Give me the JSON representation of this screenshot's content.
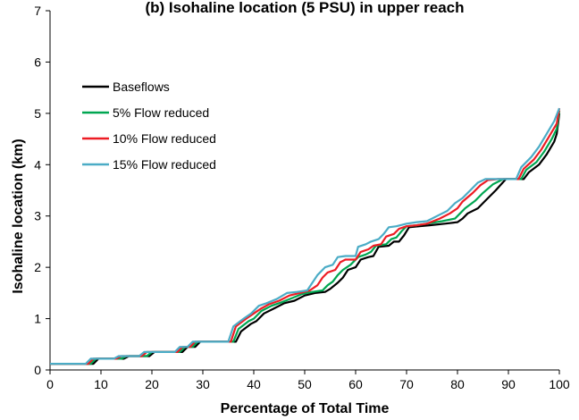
{
  "chart_data": {
    "type": "line",
    "title": "(b) Isohaline location (5 PSU) in upper reach",
    "xlabel": "Percentage of Total Time",
    "ylabel": "Isohaline location (km)",
    "xlim": [
      0,
      100
    ],
    "ylim": [
      0,
      7
    ],
    "x_ticks": [
      0,
      10,
      20,
      30,
      40,
      50,
      60,
      70,
      80,
      90,
      100
    ],
    "y_ticks": [
      0,
      1,
      2,
      3,
      4,
      5,
      6,
      7
    ],
    "grid": false,
    "legend_position": "upper-left",
    "series": [
      {
        "name": "Baseflows",
        "color": "#000000",
        "points": [
          [
            0,
            0.12
          ],
          [
            8.5,
            0.12
          ],
          [
            9.5,
            0.22
          ],
          [
            14.5,
            0.22
          ],
          [
            15.5,
            0.27
          ],
          [
            19.5,
            0.27
          ],
          [
            20.5,
            0.35
          ],
          [
            26,
            0.35
          ],
          [
            27,
            0.45
          ],
          [
            28.5,
            0.45
          ],
          [
            29.5,
            0.55
          ],
          [
            36.5,
            0.55
          ],
          [
            37.5,
            0.75
          ],
          [
            39.5,
            0.9
          ],
          [
            40.5,
            0.95
          ],
          [
            42,
            1.1
          ],
          [
            44,
            1.2
          ],
          [
            46,
            1.3
          ],
          [
            48,
            1.35
          ],
          [
            50,
            1.45
          ],
          [
            52,
            1.5
          ],
          [
            54,
            1.52
          ],
          [
            55,
            1.58
          ],
          [
            56.5,
            1.7
          ],
          [
            57.5,
            1.8
          ],
          [
            58.5,
            1.95
          ],
          [
            60,
            2.0
          ],
          [
            61,
            2.15
          ],
          [
            62.5,
            2.2
          ],
          [
            63.5,
            2.22
          ],
          [
            64.5,
            2.4
          ],
          [
            66.5,
            2.42
          ],
          [
            67.5,
            2.5
          ],
          [
            68.5,
            2.5
          ],
          [
            69.5,
            2.62
          ],
          [
            70.5,
            2.78
          ],
          [
            72.5,
            2.8
          ],
          [
            74.5,
            2.82
          ],
          [
            77.5,
            2.85
          ],
          [
            80,
            2.88
          ],
          [
            81,
            2.95
          ],
          [
            82,
            3.05
          ],
          [
            84,
            3.15
          ],
          [
            85.5,
            3.3
          ],
          [
            87.5,
            3.5
          ],
          [
            89.5,
            3.72
          ],
          [
            93,
            3.72
          ],
          [
            94,
            3.85
          ],
          [
            96,
            4.0
          ],
          [
            97.5,
            4.2
          ],
          [
            99,
            4.45
          ],
          [
            99.5,
            4.6
          ],
          [
            100,
            5.0
          ]
        ]
      },
      {
        "name": "5% Flow reduced",
        "color": "#00A651",
        "points": [
          [
            0,
            0.12
          ],
          [
            8,
            0.12
          ],
          [
            9,
            0.22
          ],
          [
            14,
            0.22
          ],
          [
            15,
            0.27
          ],
          [
            19,
            0.27
          ],
          [
            20,
            0.35
          ],
          [
            25.5,
            0.35
          ],
          [
            26.5,
            0.45
          ],
          [
            28,
            0.45
          ],
          [
            29,
            0.55
          ],
          [
            36,
            0.55
          ],
          [
            37,
            0.8
          ],
          [
            39,
            0.95
          ],
          [
            40,
            1.0
          ],
          [
            41.5,
            1.15
          ],
          [
            43.5,
            1.25
          ],
          [
            45.5,
            1.32
          ],
          [
            47.5,
            1.4
          ],
          [
            49.5,
            1.48
          ],
          [
            51.5,
            1.52
          ],
          [
            53.5,
            1.55
          ],
          [
            54.5,
            1.65
          ],
          [
            55.5,
            1.72
          ],
          [
            56.5,
            1.85
          ],
          [
            57.5,
            1.95
          ],
          [
            59,
            2.05
          ],
          [
            60.5,
            2.2
          ],
          [
            62,
            2.25
          ],
          [
            63,
            2.3
          ],
          [
            64,
            2.42
          ],
          [
            66,
            2.45
          ],
          [
            67,
            2.55
          ],
          [
            68,
            2.58
          ],
          [
            69,
            2.7
          ],
          [
            70,
            2.8
          ],
          [
            72,
            2.82
          ],
          [
            74,
            2.85
          ],
          [
            77,
            2.9
          ],
          [
            79.5,
            2.95
          ],
          [
            80.5,
            3.05
          ],
          [
            81.5,
            3.15
          ],
          [
            83.5,
            3.3
          ],
          [
            85,
            3.45
          ],
          [
            87,
            3.62
          ],
          [
            89,
            3.72
          ],
          [
            92.5,
            3.72
          ],
          [
            93.5,
            3.9
          ],
          [
            95.5,
            4.05
          ],
          [
            97,
            4.25
          ],
          [
            98.5,
            4.5
          ],
          [
            99.5,
            4.7
          ],
          [
            100,
            5.05
          ]
        ]
      },
      {
        "name": "10% Flow reduced",
        "color": "#ED1C24",
        "points": [
          [
            0,
            0.12
          ],
          [
            7.5,
            0.12
          ],
          [
            8.5,
            0.22
          ],
          [
            13,
            0.22
          ],
          [
            14,
            0.27
          ],
          [
            18,
            0.27
          ],
          [
            19,
            0.35
          ],
          [
            25,
            0.35
          ],
          [
            26,
            0.45
          ],
          [
            27.5,
            0.45
          ],
          [
            28.5,
            0.55
          ],
          [
            35.5,
            0.55
          ],
          [
            36.5,
            0.85
          ],
          [
            38.5,
            1.0
          ],
          [
            40,
            1.1
          ],
          [
            41.5,
            1.2
          ],
          [
            43,
            1.28
          ],
          [
            45,
            1.35
          ],
          [
            47,
            1.45
          ],
          [
            49,
            1.5
          ],
          [
            51,
            1.55
          ],
          [
            52.5,
            1.65
          ],
          [
            53.5,
            1.8
          ],
          [
            54.5,
            1.9
          ],
          [
            56,
            1.95
          ],
          [
            57,
            2.1
          ],
          [
            58,
            2.15
          ],
          [
            60,
            2.15
          ],
          [
            61,
            2.3
          ],
          [
            62.5,
            2.35
          ],
          [
            63.5,
            2.42
          ],
          [
            65,
            2.45
          ],
          [
            66,
            2.6
          ],
          [
            67.5,
            2.65
          ],
          [
            68.5,
            2.75
          ],
          [
            70,
            2.8
          ],
          [
            72,
            2.82
          ],
          [
            74,
            2.85
          ],
          [
            76.5,
            2.95
          ],
          [
            78.5,
            3.05
          ],
          [
            80,
            3.15
          ],
          [
            81,
            3.28
          ],
          [
            83,
            3.45
          ],
          [
            84.5,
            3.6
          ],
          [
            86,
            3.7
          ],
          [
            88,
            3.72
          ],
          [
            92,
            3.72
          ],
          [
            93,
            3.92
          ],
          [
            95,
            4.1
          ],
          [
            96.5,
            4.3
          ],
          [
            98,
            4.55
          ],
          [
            99.5,
            4.8
          ],
          [
            100,
            5.1
          ]
        ]
      },
      {
        "name": "15% Flow reduced",
        "color": "#4BACC6",
        "points": [
          [
            0,
            0.12
          ],
          [
            7,
            0.12
          ],
          [
            8,
            0.22
          ],
          [
            12.5,
            0.22
          ],
          [
            13.5,
            0.27
          ],
          [
            17.5,
            0.27
          ],
          [
            18.5,
            0.35
          ],
          [
            24.5,
            0.35
          ],
          [
            25.5,
            0.45
          ],
          [
            27,
            0.45
          ],
          [
            28,
            0.55
          ],
          [
            35,
            0.55
          ],
          [
            36,
            0.85
          ],
          [
            38,
            1.0
          ],
          [
            39.5,
            1.1
          ],
          [
            41,
            1.25
          ],
          [
            42.5,
            1.3
          ],
          [
            44.5,
            1.38
          ],
          [
            46.5,
            1.5
          ],
          [
            48.5,
            1.52
          ],
          [
            50.5,
            1.55
          ],
          [
            51.5,
            1.7
          ],
          [
            52.5,
            1.85
          ],
          [
            54,
            2.0
          ],
          [
            55.5,
            2.05
          ],
          [
            56.5,
            2.2
          ],
          [
            58,
            2.22
          ],
          [
            60,
            2.22
          ],
          [
            60.5,
            2.4
          ],
          [
            62,
            2.45
          ],
          [
            63,
            2.5
          ],
          [
            64.5,
            2.55
          ],
          [
            65.5,
            2.65
          ],
          [
            66.5,
            2.78
          ],
          [
            68,
            2.8
          ],
          [
            70,
            2.85
          ],
          [
            72,
            2.88
          ],
          [
            74,
            2.9
          ],
          [
            76,
            3.0
          ],
          [
            78,
            3.1
          ],
          [
            79.5,
            3.25
          ],
          [
            81,
            3.35
          ],
          [
            82.5,
            3.5
          ],
          [
            84,
            3.65
          ],
          [
            85.5,
            3.72
          ],
          [
            87.5,
            3.72
          ],
          [
            91.5,
            3.72
          ],
          [
            92.5,
            3.95
          ],
          [
            94.5,
            4.15
          ],
          [
            96,
            4.35
          ],
          [
            97.5,
            4.6
          ],
          [
            99,
            4.85
          ],
          [
            100,
            5.1
          ]
        ]
      }
    ]
  }
}
